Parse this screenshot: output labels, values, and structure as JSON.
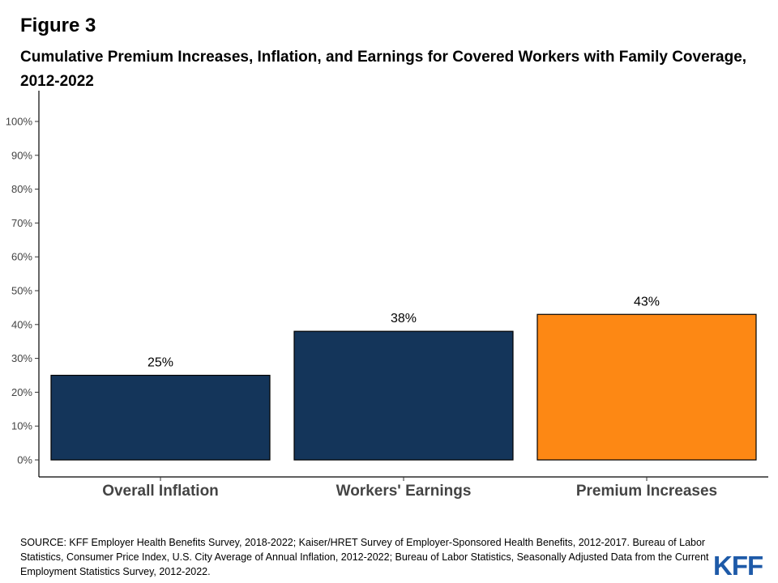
{
  "figure_label": "Figure 3",
  "source": "SOURCE: KFF Employer Health Benefits Survey, 2018-2022; Kaiser/HRET Survey of Employer-Sponsored Health Benefits, 2012-2017. Bureau of Labor Statistics, Consumer Price Index, U.S. City Average of Annual Inflation, 2012-2022; Bureau of Labor Statistics, Seasonally Adjusted Data from the Current Employment Statistics Survey, 2012-2022.",
  "logo": "KFF",
  "chart_data": {
    "type": "bar",
    "title": "Cumulative Premium Increases, Inflation, and Earnings for Covered Workers with Family Coverage, 2012-2022",
    "xlabel": "",
    "ylabel": "",
    "categories": [
      "Overall Inflation",
      "Workers' Earnings",
      "Premium Increases"
    ],
    "values": [
      25,
      38,
      43
    ],
    "data_labels": [
      "25%",
      "38%",
      "43%"
    ],
    "colors": [
      "#14355a",
      "#14355a",
      "#fd8814"
    ],
    "ylim": [
      0,
      100
    ],
    "yticks": [
      0,
      10,
      20,
      30,
      40,
      50,
      60,
      70,
      80,
      90,
      100
    ],
    "ytick_labels": [
      "0%",
      "10%",
      "20%",
      "30%",
      "40%",
      "50%",
      "60%",
      "70%",
      "80%",
      "90%",
      "100%"
    ],
    "grid": false,
    "legend": "none"
  }
}
